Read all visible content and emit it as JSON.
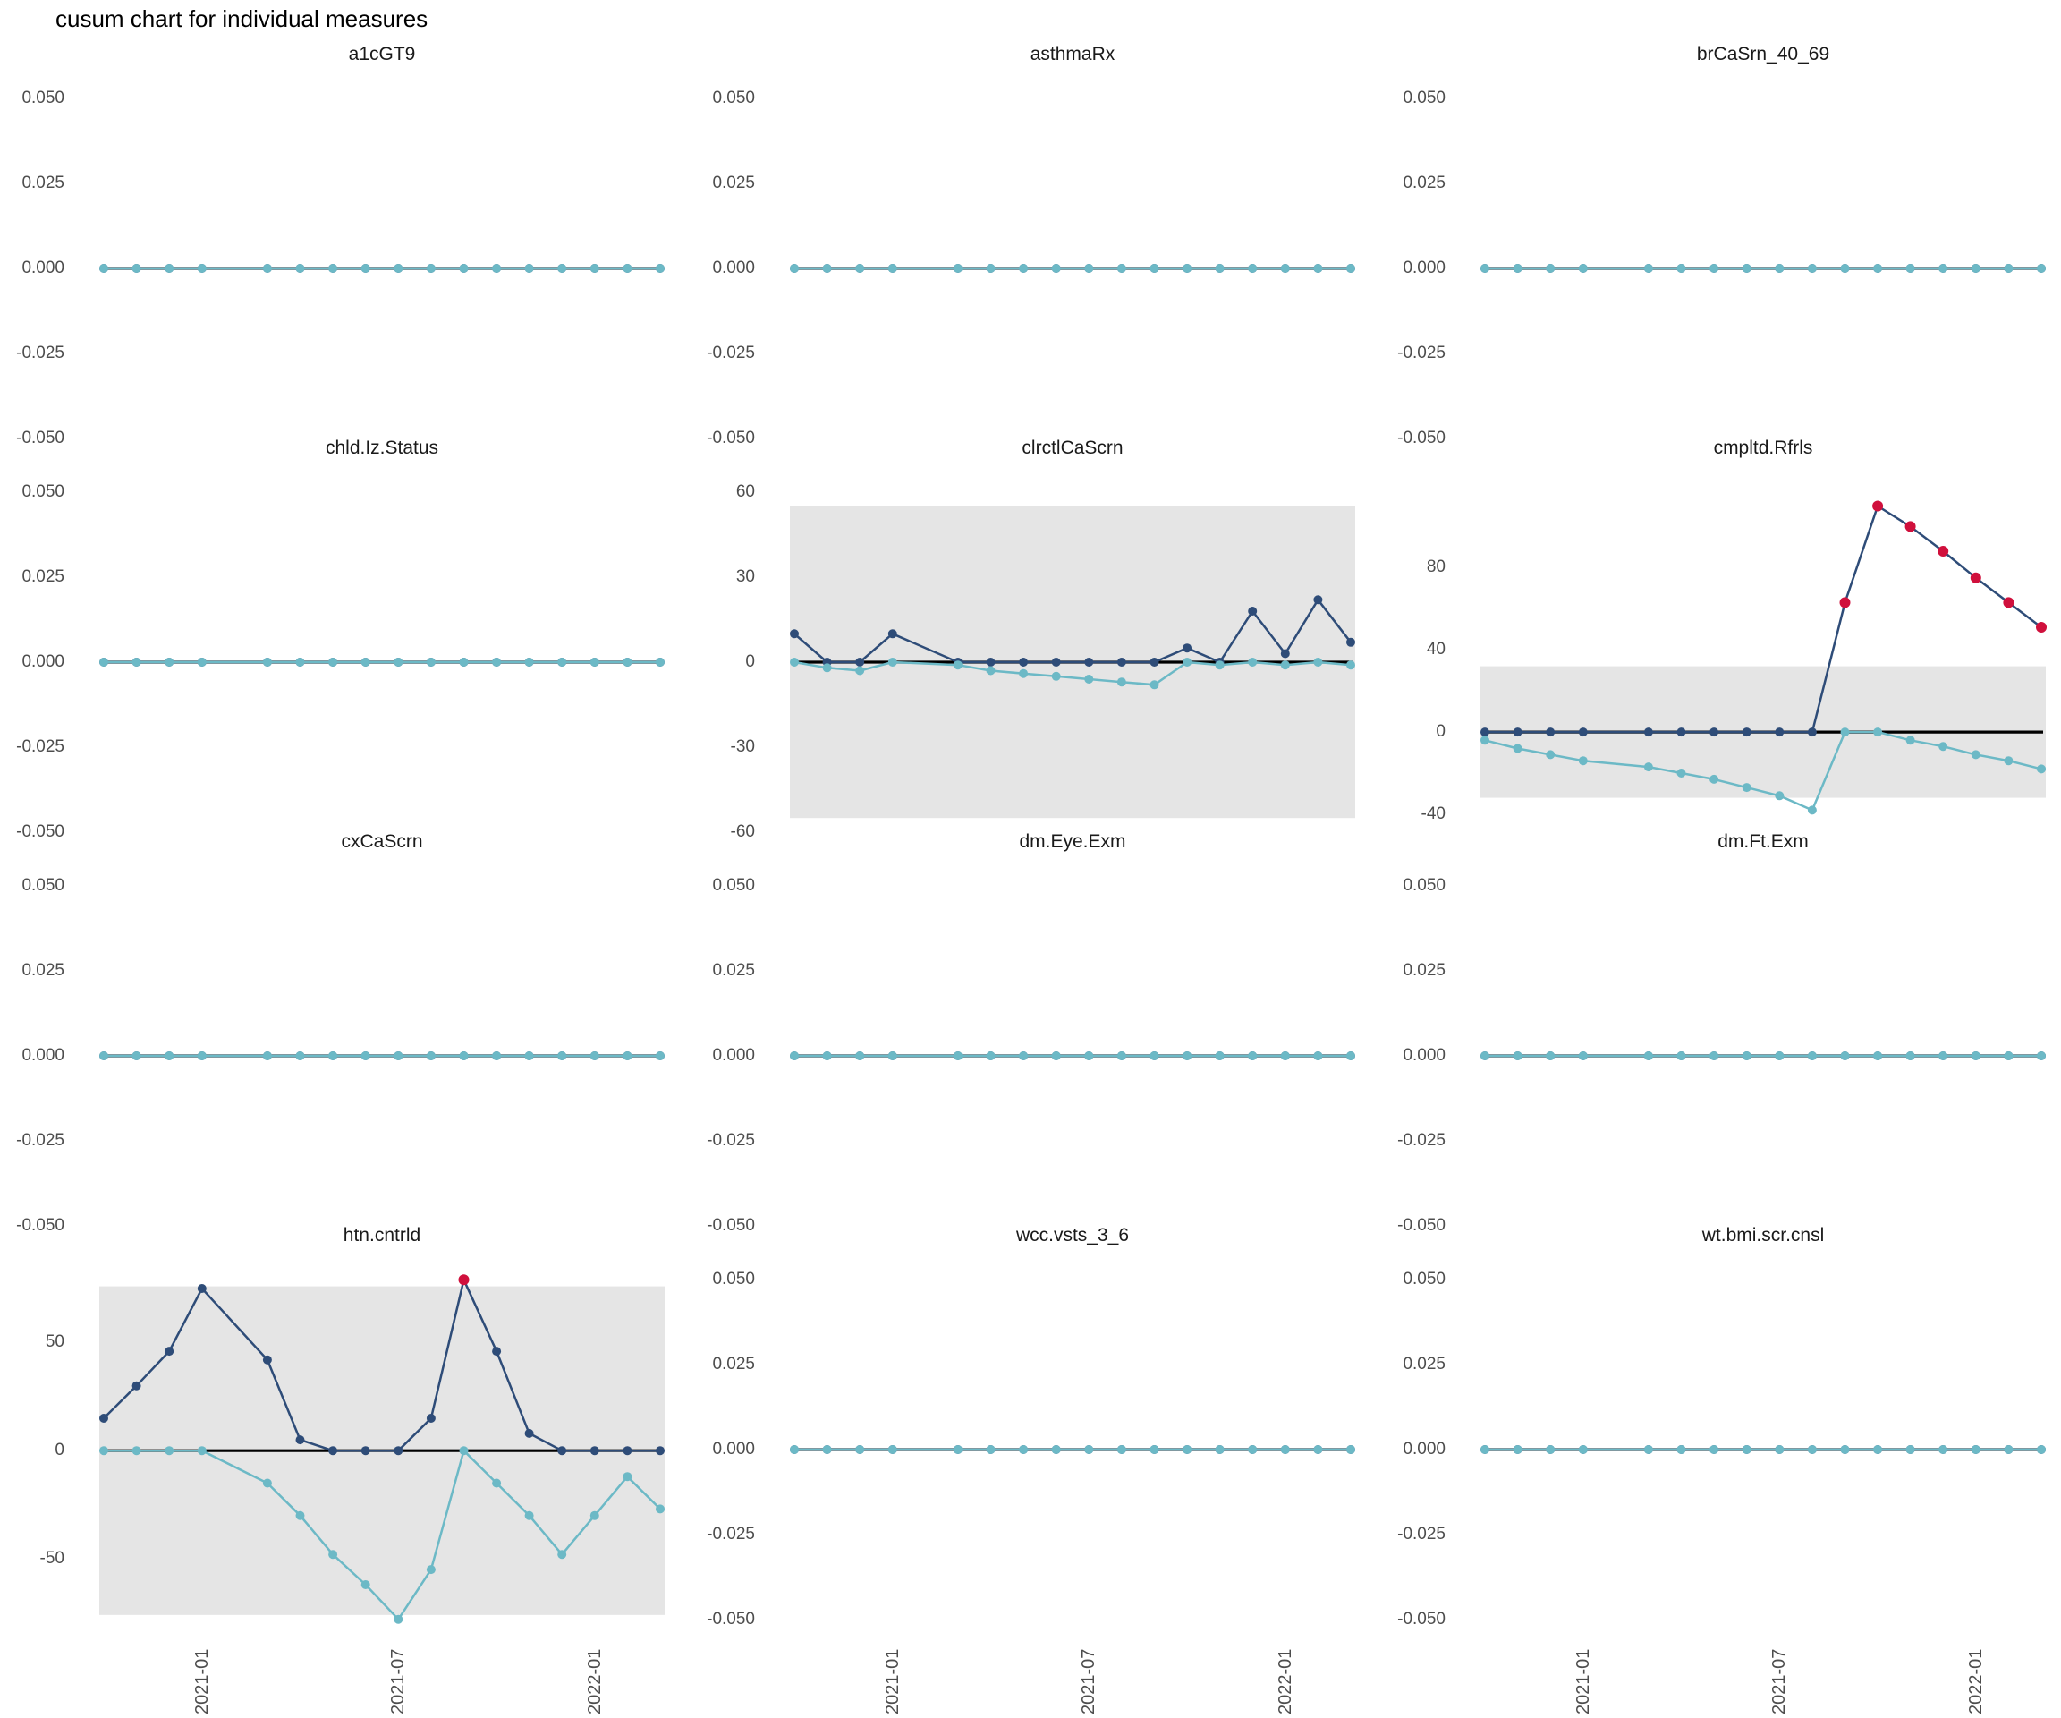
{
  "title": "cusum chart for individual measures",
  "colors": {
    "upper_line": "#2E4C78",
    "lower_line": "#6CB9C6",
    "signal": "#D0103C",
    "band": "#E5E5E5",
    "zero_line": "#000000",
    "axis_text": "#4D4D4D",
    "panel_title_text": "#1A1A1A",
    "title_text": "#000000",
    "background": "#FFFFFF"
  },
  "chart_data": {
    "type": "line",
    "title": "cusum chart for individual measures",
    "x_tick_labels": [
      "2021-01",
      "2021-07",
      "2022-01"
    ],
    "x_tick_slots": [
      4,
      10,
      16
    ],
    "n_slots": 18,
    "x_slot_of_point": [
      1,
      2,
      3,
      4,
      6,
      7,
      8,
      9,
      10,
      11,
      12,
      13,
      14,
      15,
      16,
      17,
      18
    ],
    "legend": "none",
    "facets": [
      {
        "title": "a1cGT9",
        "ylim": [
          -0.055,
          0.055
        ],
        "ytick_values": [
          0.05,
          0.025,
          0,
          -0.025,
          -0.05
        ],
        "ytick_labels": [
          "0.050",
          "0.025",
          "0.000",
          "-0.025",
          "-0.050"
        ],
        "band": null,
        "series": [
          {
            "name": "cusum positive",
            "values": [
              0,
              0,
              0,
              0,
              0,
              0,
              0,
              0,
              0,
              0,
              0,
              0,
              0,
              0,
              0,
              0,
              0
            ]
          },
          {
            "name": "cusum negative",
            "values": [
              0,
              0,
              0,
              0,
              0,
              0,
              0,
              0,
              0,
              0,
              0,
              0,
              0,
              0,
              0,
              0,
              0
            ]
          }
        ],
        "signal_points_upper": [],
        "signal_points_lower": []
      },
      {
        "title": "asthmaRx",
        "ylim": [
          -0.055,
          0.055
        ],
        "ytick_values": [
          0.05,
          0.025,
          0,
          -0.025,
          -0.05
        ],
        "ytick_labels": [
          "0.050",
          "0.025",
          "0.000",
          "-0.025",
          "-0.050"
        ],
        "band": null,
        "series": [
          {
            "name": "cusum positive",
            "values": [
              0,
              0,
              0,
              0,
              0,
              0,
              0,
              0,
              0,
              0,
              0,
              0,
              0,
              0,
              0,
              0,
              0
            ]
          },
          {
            "name": "cusum negative",
            "values": [
              0,
              0,
              0,
              0,
              0,
              0,
              0,
              0,
              0,
              0,
              0,
              0,
              0,
              0,
              0,
              0,
              0
            ]
          }
        ],
        "signal_points_upper": [],
        "signal_points_lower": []
      },
      {
        "title": "brCaSrn_40_69",
        "ylim": [
          -0.055,
          0.055
        ],
        "ytick_values": [
          0.05,
          0.025,
          0,
          -0.025,
          -0.05
        ],
        "ytick_labels": [
          "0.050",
          "0.025",
          "0.000",
          "-0.025",
          "-0.050"
        ],
        "band": null,
        "series": [
          {
            "name": "cusum positive",
            "values": [
              0,
              0,
              0,
              0,
              0,
              0,
              0,
              0,
              0,
              0,
              0,
              0,
              0,
              0,
              0,
              0,
              0
            ]
          },
          {
            "name": "cusum negative",
            "values": [
              0,
              0,
              0,
              0,
              0,
              0,
              0,
              0,
              0,
              0,
              0,
              0,
              0,
              0,
              0,
              0,
              0
            ]
          }
        ],
        "signal_points_upper": [],
        "signal_points_lower": []
      },
      {
        "title": "chld.Iz.Status",
        "ylim": [
          -0.055,
          0.055
        ],
        "ytick_values": [
          0.05,
          0.025,
          0,
          -0.025,
          -0.05
        ],
        "ytick_labels": [
          "0.050",
          "0.025",
          "0.000",
          "-0.025",
          "-0.050"
        ],
        "band": null,
        "series": [
          {
            "name": "cusum positive",
            "values": [
              0,
              0,
              0,
              0,
              0,
              0,
              0,
              0,
              0,
              0,
              0,
              0,
              0,
              0,
              0,
              0,
              0
            ]
          },
          {
            "name": "cusum negative",
            "values": [
              0,
              0,
              0,
              0,
              0,
              0,
              0,
              0,
              0,
              0,
              0,
              0,
              0,
              0,
              0,
              0,
              0
            ]
          }
        ],
        "signal_points_upper": [],
        "signal_points_lower": []
      },
      {
        "title": "clrctlCaScrn",
        "ylim": [
          -66,
          66
        ],
        "ytick_values": [
          60,
          30,
          0,
          -30,
          -60
        ],
        "ytick_labels": [
          "60",
          "30",
          "0",
          "-30",
          "-60"
        ],
        "band": [
          -55,
          55
        ],
        "series": [
          {
            "name": "cusum positive",
            "values": [
              10,
              0,
              0,
              10,
              0,
              0,
              0,
              0,
              0,
              0,
              0,
              5,
              0,
              18,
              3,
              22,
              7
            ]
          },
          {
            "name": "cusum negative",
            "values": [
              0,
              -2,
              -3,
              0,
              -1,
              -3,
              -4,
              -5,
              -6,
              -7,
              -8,
              0,
              -1,
              0,
              -1,
              0,
              -1
            ]
          }
        ],
        "signal_points_upper": [],
        "signal_points_lower": []
      },
      {
        "title": "cmpltd.Rfrls",
        "ylim": [
          -57,
          125
        ],
        "ytick_values": [
          80,
          40,
          0,
          -40
        ],
        "ytick_labels": [
          "80",
          "40",
          "0",
          "-40"
        ],
        "band": [
          -32,
          32
        ],
        "series": [
          {
            "name": "cusum positive",
            "values": [
              0,
              0,
              0,
              0,
              0,
              0,
              0,
              0,
              0,
              0,
              63,
              110,
              100,
              88,
              75,
              63,
              51
            ]
          },
          {
            "name": "cusum negative",
            "values": [
              -4,
              -8,
              -11,
              -14,
              -17,
              -20,
              -23,
              -27,
              -31,
              -38,
              0,
              0,
              -4,
              -7,
              -11,
              -14,
              -18
            ]
          }
        ],
        "signal_points_upper": [
          10,
          11,
          12,
          13,
          14,
          15,
          16
        ],
        "signal_points_lower": []
      },
      {
        "title": "cxCaScrn",
        "ylim": [
          -0.055,
          0.055
        ],
        "ytick_values": [
          0.05,
          0.025,
          0,
          -0.025,
          -0.05
        ],
        "ytick_labels": [
          "0.050",
          "0.025",
          "0.000",
          "-0.025",
          "-0.050"
        ],
        "band": null,
        "series": [
          {
            "name": "cusum positive",
            "values": [
              0,
              0,
              0,
              0,
              0,
              0,
              0,
              0,
              0,
              0,
              0,
              0,
              0,
              0,
              0,
              0,
              0
            ]
          },
          {
            "name": "cusum negative",
            "values": [
              0,
              0,
              0,
              0,
              0,
              0,
              0,
              0,
              0,
              0,
              0,
              0,
              0,
              0,
              0,
              0,
              0
            ]
          }
        ],
        "signal_points_upper": [],
        "signal_points_lower": []
      },
      {
        "title": "dm.Eye.Exm",
        "ylim": [
          -0.055,
          0.055
        ],
        "ytick_values": [
          0.05,
          0.025,
          0,
          -0.025,
          -0.05
        ],
        "ytick_labels": [
          "0.050",
          "0.025",
          "0.000",
          "-0.025",
          "-0.050"
        ],
        "band": null,
        "series": [
          {
            "name": "cusum positive",
            "values": [
              0,
              0,
              0,
              0,
              0,
              0,
              0,
              0,
              0,
              0,
              0,
              0,
              0,
              0,
              0,
              0,
              0
            ]
          },
          {
            "name": "cusum negative",
            "values": [
              0,
              0,
              0,
              0,
              0,
              0,
              0,
              0,
              0,
              0,
              0,
              0,
              0,
              0,
              0,
              0,
              0
            ]
          }
        ],
        "signal_points_upper": [],
        "signal_points_lower": []
      },
      {
        "title": "dm.Ft.Exm",
        "ylim": [
          -0.055,
          0.055
        ],
        "ytick_values": [
          0.05,
          0.025,
          0,
          -0.025,
          -0.05
        ],
        "ytick_labels": [
          "0.050",
          "0.025",
          "0.000",
          "-0.025",
          "-0.050"
        ],
        "band": null,
        "series": [
          {
            "name": "cusum positive",
            "values": [
              0,
              0,
              0,
              0,
              0,
              0,
              0,
              0,
              0,
              0,
              0,
              0,
              0,
              0,
              0,
              0,
              0
            ]
          },
          {
            "name": "cusum negative",
            "values": [
              0,
              0,
              0,
              0,
              0,
              0,
              0,
              0,
              0,
              0,
              0,
              0,
              0,
              0,
              0,
              0,
              0
            ]
          }
        ],
        "signal_points_upper": [],
        "signal_points_lower": []
      },
      {
        "title": "htn.cntrld",
        "ylim": [
          -86,
          87
        ],
        "ytick_values": [
          50,
          0,
          -50
        ],
        "ytick_labels": [
          "50",
          "0",
          "-50"
        ],
        "band": [
          -76,
          76
        ],
        "series": [
          {
            "name": "cusum positive",
            "values": [
              15,
              30,
              46,
              75,
              42,
              5,
              0,
              0,
              0,
              15,
              79,
              46,
              8,
              0,
              0,
              0,
              0
            ]
          },
          {
            "name": "cusum negative",
            "values": [
              0,
              0,
              0,
              0,
              -15,
              -30,
              -48,
              -62,
              -78,
              -55,
              0,
              -15,
              -30,
              -48,
              -30,
              -12,
              -27
            ]
          }
        ],
        "signal_points_upper": [
          10
        ],
        "signal_points_lower": []
      },
      {
        "title": "wcc.vsts_3_6",
        "ylim": [
          -0.055,
          0.055
        ],
        "ytick_values": [
          0.05,
          0.025,
          0,
          -0.025,
          -0.05
        ],
        "ytick_labels": [
          "0.050",
          "0.025",
          "0.000",
          "-0.025",
          "-0.050"
        ],
        "band": null,
        "series": [
          {
            "name": "cusum positive",
            "values": [
              0,
              0,
              0,
              0,
              0,
              0,
              0,
              0,
              0,
              0,
              0,
              0,
              0,
              0,
              0,
              0,
              0
            ]
          },
          {
            "name": "cusum negative",
            "values": [
              0,
              0,
              0,
              0,
              0,
              0,
              0,
              0,
              0,
              0,
              0,
              0,
              0,
              0,
              0,
              0,
              0
            ]
          }
        ],
        "signal_points_upper": [],
        "signal_points_lower": []
      },
      {
        "title": "wt.bmi.scr.cnsl",
        "ylim": [
          -0.055,
          0.055
        ],
        "ytick_values": [
          0.05,
          0.025,
          0,
          -0.025,
          -0.05
        ],
        "ytick_labels": [
          "0.050",
          "0.025",
          "0.000",
          "-0.025",
          "-0.050"
        ],
        "band": null,
        "series": [
          {
            "name": "cusum positive",
            "values": [
              0,
              0,
              0,
              0,
              0,
              0,
              0,
              0,
              0,
              0,
              0,
              0,
              0,
              0,
              0,
              0,
              0
            ]
          },
          {
            "name": "cusum negative",
            "values": [
              0,
              0,
              0,
              0,
              0,
              0,
              0,
              0,
              0,
              0,
              0,
              0,
              0,
              0,
              0,
              0,
              0
            ]
          }
        ],
        "signal_points_upper": [],
        "signal_points_lower": []
      }
    ]
  }
}
